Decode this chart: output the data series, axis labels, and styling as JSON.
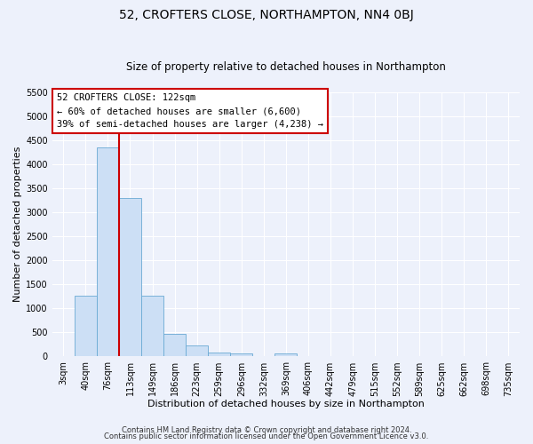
{
  "title": "52, CROFTERS CLOSE, NORTHAMPTON, NN4 0BJ",
  "subtitle": "Size of property relative to detached houses in Northampton",
  "xlabel": "Distribution of detached houses by size in Northampton",
  "ylabel": "Number of detached properties",
  "bin_labels": [
    "3sqm",
    "40sqm",
    "76sqm",
    "113sqm",
    "149sqm",
    "186sqm",
    "223sqm",
    "259sqm",
    "296sqm",
    "332sqm",
    "369sqm",
    "406sqm",
    "442sqm",
    "479sqm",
    "515sqm",
    "552sqm",
    "589sqm",
    "625sqm",
    "662sqm",
    "698sqm",
    "735sqm"
  ],
  "bar_values": [
    0,
    1270,
    4350,
    3300,
    1270,
    480,
    230,
    90,
    60,
    0,
    60,
    0,
    0,
    0,
    0,
    0,
    0,
    0,
    0,
    0,
    0
  ],
  "bar_color": "#ccdff5",
  "bar_edge_color": "#6aaad4",
  "vline_x_index": 2.5,
  "vline_color": "#cc0000",
  "ylim": [
    0,
    5500
  ],
  "yticks": [
    0,
    500,
    1000,
    1500,
    2000,
    2500,
    3000,
    3500,
    4000,
    4500,
    5000,
    5500
  ],
  "annotation_title": "52 CROFTERS CLOSE: 122sqm",
  "annotation_line1": "← 60% of detached houses are smaller (6,600)",
  "annotation_line2": "39% of semi-detached houses are larger (4,238) →",
  "annotation_box_color": "#ffffff",
  "annotation_box_edge": "#cc0000",
  "footer1": "Contains HM Land Registry data © Crown copyright and database right 2024.",
  "footer2": "Contains public sector information licensed under the Open Government Licence v3.0.",
  "bg_color": "#edf1fb",
  "plot_bg_color": "#edf1fb",
  "grid_color": "#ffffff",
  "title_fontsize": 10,
  "subtitle_fontsize": 8.5,
  "axis_label_fontsize": 8,
  "tick_fontsize": 7,
  "annotation_fontsize": 7.5,
  "footer_fontsize": 6
}
